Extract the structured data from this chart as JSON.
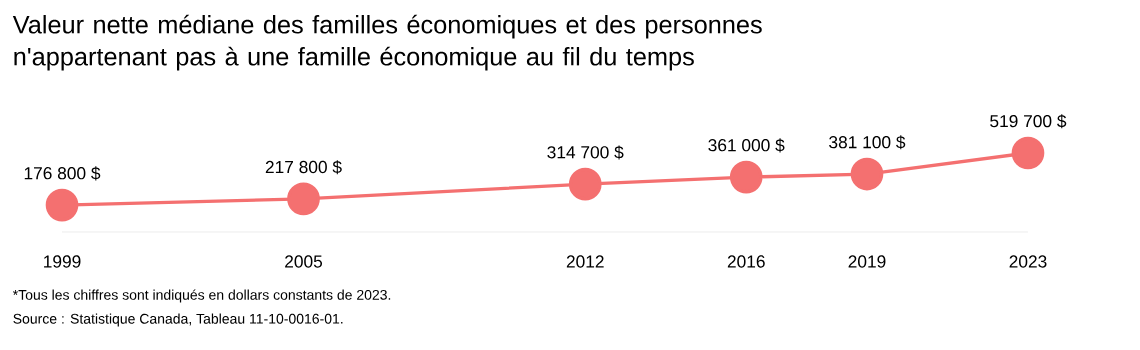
{
  "chart_data": {
    "type": "line",
    "title": "Valeur nette médiane des familles économiques et des personnes n'appartenant pas à une famille économique au fil du temps",
    "x": [
      1999,
      2005,
      2012,
      2016,
      2019,
      2023
    ],
    "xlim": [
      1999,
      2023
    ],
    "xticks": [
      1999,
      2005,
      2012,
      2016,
      2019,
      2023
    ],
    "tick_labels": "x",
    "values": [
      176800,
      217800,
      314700,
      361000,
      381100,
      519700
    ],
    "value_labels": [
      "176 800 $",
      "217 800 $",
      "314 700 $",
      "361 000 $",
      "381 100 $",
      "519 700 $"
    ],
    "color": "#f47070",
    "marker": "circle",
    "line_style": "solid",
    "grid": false,
    "legend": false,
    "annotations": [
      "*Tous les chiffres sont indiqués en dollars constants de 2023.",
      "Source : Statistique Canada, Tableau 11-10-0016-01."
    ]
  }
}
